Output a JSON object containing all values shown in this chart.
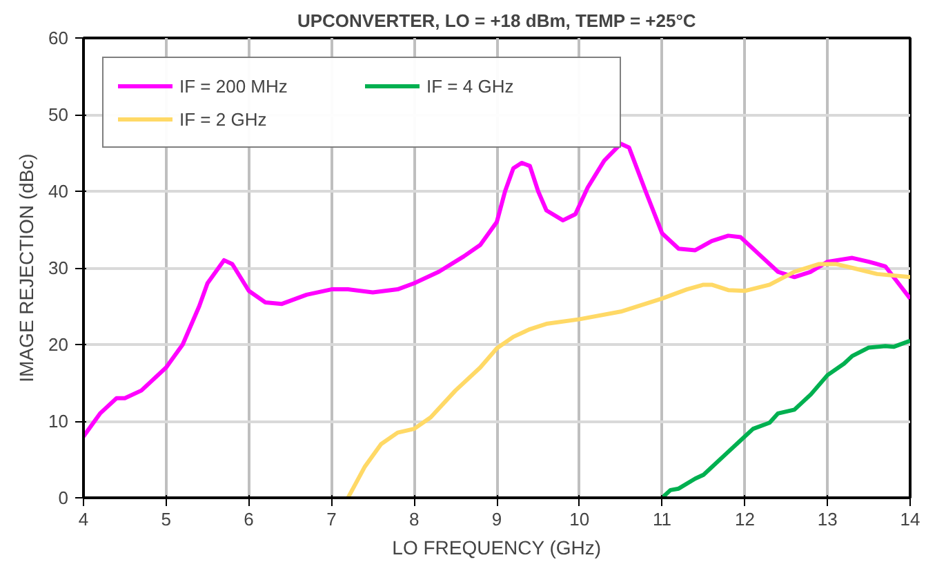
{
  "chart_data": {
    "type": "line",
    "title": "UPCONVERTER, LO = +18 dBm, TEMP = +25°C",
    "xlabel": "LO FREQUENCY (GHz)",
    "ylabel": "IMAGE REJECTION (dBc)",
    "xlim": [
      4,
      14
    ],
    "xticks": [
      4,
      5,
      6,
      7,
      8,
      9,
      10,
      11,
      12,
      13,
      14
    ],
    "ylim": [
      0,
      60
    ],
    "yticks": [
      0,
      10,
      20,
      30,
      40,
      50,
      60
    ],
    "grid": true,
    "legend": "top left",
    "line_style": "solid",
    "marker": "none",
    "series": [
      {
        "name": "IF = 200 MHz",
        "color": "#ff00ff",
        "x": [
          4,
          4.2,
          4.4,
          4.5,
          4.7,
          5,
          5.2,
          5.4,
          5.5,
          5.7,
          5.8,
          6,
          6.2,
          6.4,
          6.7,
          7,
          7.2,
          7.5,
          7.8,
          8,
          8.3,
          8.6,
          8.8,
          9,
          9.1,
          9.2,
          9.3,
          9.4,
          9.5,
          9.6,
          9.8,
          9.95,
          10.1,
          10.3,
          10.5,
          10.6,
          10.8,
          11,
          11.2,
          11.4,
          11.6,
          11.8,
          11.95,
          12.2,
          12.4,
          12.6,
          12.8,
          13,
          13.3,
          13.5,
          13.7,
          14
        ],
        "values": [
          8,
          11,
          13,
          13,
          14,
          17,
          20,
          25,
          28,
          31,
          30.5,
          27,
          25.5,
          25.3,
          26.5,
          27.2,
          27.2,
          26.8,
          27.2,
          28,
          29.5,
          31.5,
          33,
          36,
          40,
          43,
          43.7,
          43.3,
          40,
          37.5,
          36.2,
          37,
          40.5,
          44,
          46.2,
          45.7,
          40,
          34.5,
          32.5,
          32.3,
          33.5,
          34.2,
          34,
          31.5,
          29.5,
          28.8,
          29.5,
          30.8,
          31.3,
          30.8,
          30.2,
          26
        ]
      },
      {
        "name": "IF = 2 GHz",
        "color": "#ffd966",
        "x": [
          7.2,
          7.4,
          7.6,
          7.8,
          8,
          8.2,
          8.5,
          8.8,
          9,
          9.2,
          9.4,
          9.6,
          10,
          10.5,
          11,
          11.3,
          11.5,
          11.6,
          11.8,
          12,
          12.3,
          12.6,
          12.9,
          13.1,
          13.3,
          13.6,
          14
        ],
        "values": [
          0,
          4,
          7,
          8.5,
          9,
          10.5,
          14,
          17,
          19.5,
          21,
          22,
          22.7,
          23.3,
          24.3,
          26,
          27.2,
          27.8,
          27.8,
          27.1,
          27,
          27.8,
          29.5,
          30.5,
          30.5,
          30,
          29.2,
          28.8
        ]
      },
      {
        "name": "IF = 4 GHz",
        "color": "#00b050",
        "x": [
          11,
          11.1,
          11.2,
          11.4,
          11.5,
          11.8,
          11.95,
          12.1,
          12.3,
          12.4,
          12.6,
          12.8,
          13,
          13.2,
          13.3,
          13.5,
          13.7,
          13.8,
          14
        ],
        "values": [
          0,
          1,
          1.2,
          2.5,
          3,
          6,
          7.5,
          9,
          9.8,
          11,
          11.5,
          13.5,
          16,
          17.5,
          18.5,
          19.6,
          19.8,
          19.7,
          20.5
        ]
      }
    ]
  }
}
